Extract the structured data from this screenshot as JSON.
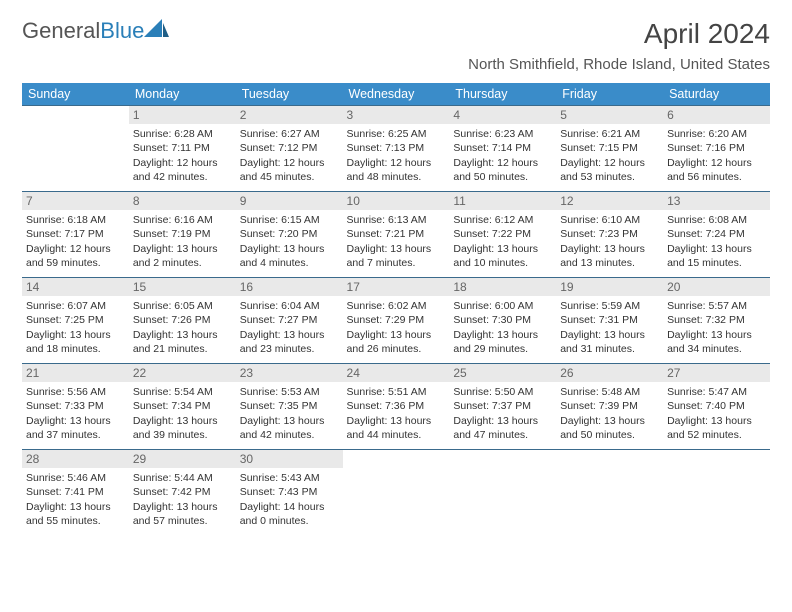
{
  "logo": {
    "word1": "General",
    "word2": "Blue"
  },
  "title": "April 2024",
  "location": "North Smithfield, Rhode Island, United States",
  "day_headers": [
    "Sunday",
    "Monday",
    "Tuesday",
    "Wednesday",
    "Thursday",
    "Friday",
    "Saturday"
  ],
  "colors": {
    "header_bg": "#3a8cc9",
    "header_text": "#ffffff",
    "rule": "#3a6a8c",
    "daynum_bg": "#e9e9e9",
    "text": "#333333",
    "logo_gray": "#555555",
    "logo_blue": "#2a7fb8"
  },
  "typography": {
    "title_fontsize": 28,
    "location_fontsize": 15,
    "header_fontsize": 12.5,
    "cell_fontsize": 10.5,
    "daynum_fontsize": 12
  },
  "weeks": [
    [
      null,
      {
        "n": "1",
        "sr": "Sunrise: 6:28 AM",
        "ss": "Sunset: 7:11 PM",
        "d1": "Daylight: 12 hours",
        "d2": "and 42 minutes."
      },
      {
        "n": "2",
        "sr": "Sunrise: 6:27 AM",
        "ss": "Sunset: 7:12 PM",
        "d1": "Daylight: 12 hours",
        "d2": "and 45 minutes."
      },
      {
        "n": "3",
        "sr": "Sunrise: 6:25 AM",
        "ss": "Sunset: 7:13 PM",
        "d1": "Daylight: 12 hours",
        "d2": "and 48 minutes."
      },
      {
        "n": "4",
        "sr": "Sunrise: 6:23 AM",
        "ss": "Sunset: 7:14 PM",
        "d1": "Daylight: 12 hours",
        "d2": "and 50 minutes."
      },
      {
        "n": "5",
        "sr": "Sunrise: 6:21 AM",
        "ss": "Sunset: 7:15 PM",
        "d1": "Daylight: 12 hours",
        "d2": "and 53 minutes."
      },
      {
        "n": "6",
        "sr": "Sunrise: 6:20 AM",
        "ss": "Sunset: 7:16 PM",
        "d1": "Daylight: 12 hours",
        "d2": "and 56 minutes."
      }
    ],
    [
      {
        "n": "7",
        "sr": "Sunrise: 6:18 AM",
        "ss": "Sunset: 7:17 PM",
        "d1": "Daylight: 12 hours",
        "d2": "and 59 minutes."
      },
      {
        "n": "8",
        "sr": "Sunrise: 6:16 AM",
        "ss": "Sunset: 7:19 PM",
        "d1": "Daylight: 13 hours",
        "d2": "and 2 minutes."
      },
      {
        "n": "9",
        "sr": "Sunrise: 6:15 AM",
        "ss": "Sunset: 7:20 PM",
        "d1": "Daylight: 13 hours",
        "d2": "and 4 minutes."
      },
      {
        "n": "10",
        "sr": "Sunrise: 6:13 AM",
        "ss": "Sunset: 7:21 PM",
        "d1": "Daylight: 13 hours",
        "d2": "and 7 minutes."
      },
      {
        "n": "11",
        "sr": "Sunrise: 6:12 AM",
        "ss": "Sunset: 7:22 PM",
        "d1": "Daylight: 13 hours",
        "d2": "and 10 minutes."
      },
      {
        "n": "12",
        "sr": "Sunrise: 6:10 AM",
        "ss": "Sunset: 7:23 PM",
        "d1": "Daylight: 13 hours",
        "d2": "and 13 minutes."
      },
      {
        "n": "13",
        "sr": "Sunrise: 6:08 AM",
        "ss": "Sunset: 7:24 PM",
        "d1": "Daylight: 13 hours",
        "d2": "and 15 minutes."
      }
    ],
    [
      {
        "n": "14",
        "sr": "Sunrise: 6:07 AM",
        "ss": "Sunset: 7:25 PM",
        "d1": "Daylight: 13 hours",
        "d2": "and 18 minutes."
      },
      {
        "n": "15",
        "sr": "Sunrise: 6:05 AM",
        "ss": "Sunset: 7:26 PM",
        "d1": "Daylight: 13 hours",
        "d2": "and 21 minutes."
      },
      {
        "n": "16",
        "sr": "Sunrise: 6:04 AM",
        "ss": "Sunset: 7:27 PM",
        "d1": "Daylight: 13 hours",
        "d2": "and 23 minutes."
      },
      {
        "n": "17",
        "sr": "Sunrise: 6:02 AM",
        "ss": "Sunset: 7:29 PM",
        "d1": "Daylight: 13 hours",
        "d2": "and 26 minutes."
      },
      {
        "n": "18",
        "sr": "Sunrise: 6:00 AM",
        "ss": "Sunset: 7:30 PM",
        "d1": "Daylight: 13 hours",
        "d2": "and 29 minutes."
      },
      {
        "n": "19",
        "sr": "Sunrise: 5:59 AM",
        "ss": "Sunset: 7:31 PM",
        "d1": "Daylight: 13 hours",
        "d2": "and 31 minutes."
      },
      {
        "n": "20",
        "sr": "Sunrise: 5:57 AM",
        "ss": "Sunset: 7:32 PM",
        "d1": "Daylight: 13 hours",
        "d2": "and 34 minutes."
      }
    ],
    [
      {
        "n": "21",
        "sr": "Sunrise: 5:56 AM",
        "ss": "Sunset: 7:33 PM",
        "d1": "Daylight: 13 hours",
        "d2": "and 37 minutes."
      },
      {
        "n": "22",
        "sr": "Sunrise: 5:54 AM",
        "ss": "Sunset: 7:34 PM",
        "d1": "Daylight: 13 hours",
        "d2": "and 39 minutes."
      },
      {
        "n": "23",
        "sr": "Sunrise: 5:53 AM",
        "ss": "Sunset: 7:35 PM",
        "d1": "Daylight: 13 hours",
        "d2": "and 42 minutes."
      },
      {
        "n": "24",
        "sr": "Sunrise: 5:51 AM",
        "ss": "Sunset: 7:36 PM",
        "d1": "Daylight: 13 hours",
        "d2": "and 44 minutes."
      },
      {
        "n": "25",
        "sr": "Sunrise: 5:50 AM",
        "ss": "Sunset: 7:37 PM",
        "d1": "Daylight: 13 hours",
        "d2": "and 47 minutes."
      },
      {
        "n": "26",
        "sr": "Sunrise: 5:48 AM",
        "ss": "Sunset: 7:39 PM",
        "d1": "Daylight: 13 hours",
        "d2": "and 50 minutes."
      },
      {
        "n": "27",
        "sr": "Sunrise: 5:47 AM",
        "ss": "Sunset: 7:40 PM",
        "d1": "Daylight: 13 hours",
        "d2": "and 52 minutes."
      }
    ],
    [
      {
        "n": "28",
        "sr": "Sunrise: 5:46 AM",
        "ss": "Sunset: 7:41 PM",
        "d1": "Daylight: 13 hours",
        "d2": "and 55 minutes."
      },
      {
        "n": "29",
        "sr": "Sunrise: 5:44 AM",
        "ss": "Sunset: 7:42 PM",
        "d1": "Daylight: 13 hours",
        "d2": "and 57 minutes."
      },
      {
        "n": "30",
        "sr": "Sunrise: 5:43 AM",
        "ss": "Sunset: 7:43 PM",
        "d1": "Daylight: 14 hours",
        "d2": "and 0 minutes."
      },
      null,
      null,
      null,
      null
    ]
  ]
}
